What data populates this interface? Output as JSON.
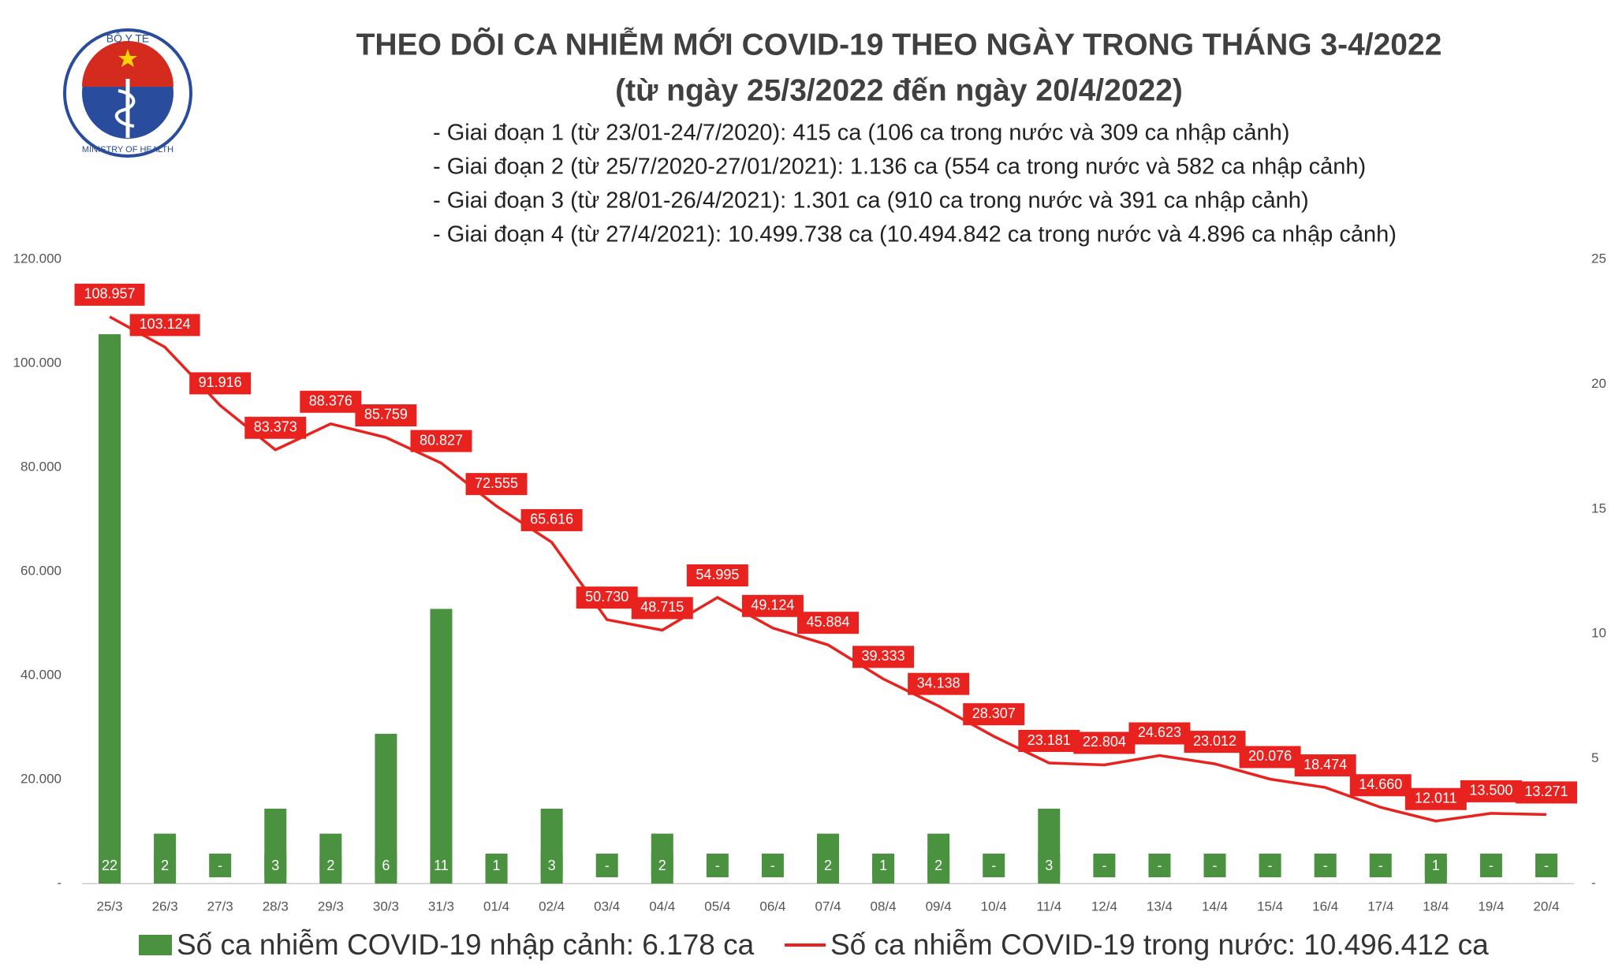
{
  "logo": {
    "top": "BỘ Y TẾ",
    "bottom": "MINISTRY OF HEALTH"
  },
  "chart_data": {
    "type": "bar-line",
    "title": "THEO DÕI CA NHIỄM MỚI COVID-19 THEO NGÀY TRONG THÁNG 3-4/2022",
    "subtitle": "(từ ngày 25/3/2022 đến ngày 20/4/2022)",
    "annotations": [
      "- Giai đoạn 1 (từ 23/01-24/7/2020): 415 ca (106 ca trong nước và 309 ca nhập cảnh)",
      "- Giai đoạn 2 (từ 25/7/2020-27/01/2021): 1.136 ca (554 ca trong nước và 582 ca nhập cảnh)",
      "- Giai đoạn 3 (từ 28/01-26/4/2021): 1.301 ca (910 ca trong nước và 391 ca nhập cảnh)",
      "- Giai đoạn 4 (từ 27/4/2021): 10.499.738 ca (10.494.842 ca trong nước và 4.896 ca nhập cảnh)"
    ],
    "categories": [
      "25/3",
      "26/3",
      "27/3",
      "28/3",
      "29/3",
      "30/3",
      "31/3",
      "01/4",
      "02/4",
      "03/4",
      "04/4",
      "05/4",
      "06/4",
      "07/4",
      "08/4",
      "09/4",
      "10/4",
      "11/4",
      "12/4",
      "13/4",
      "14/4",
      "15/4",
      "16/4",
      "17/4",
      "18/4",
      "19/4",
      "20/4"
    ],
    "series": [
      {
        "name": "Số ca nhiễm COVID-19 nhập cảnh: 6.178 ca",
        "type": "bar",
        "axis": "y2",
        "color": "#4a9140",
        "values": [
          22,
          2,
          0,
          3,
          2,
          6,
          11,
          1,
          3,
          0,
          2,
          0,
          0,
          2,
          1,
          2,
          0,
          3,
          0,
          0,
          0,
          0,
          0,
          0,
          1,
          0,
          0
        ],
        "value_labels": [
          "22",
          "2",
          "-",
          "3",
          "2",
          "6",
          "11",
          "1",
          "3",
          "-",
          "2",
          "-",
          "-",
          "2",
          "1",
          "2",
          "-",
          "3",
          "-",
          "-",
          "-",
          "-",
          "-",
          "-",
          "1",
          "-",
          "-"
        ]
      },
      {
        "name": "Số ca nhiễm COVID-19 trong nước: 10.496.412 ca",
        "type": "line",
        "color": "#e8231f",
        "values": [
          108957,
          103124,
          91916,
          83373,
          88376,
          85759,
          80827,
          72555,
          65616,
          50730,
          48715,
          54995,
          49124,
          45884,
          39333,
          34138,
          28307,
          23181,
          22804,
          24623,
          23012,
          20076,
          18474,
          14660,
          12011,
          13500,
          13271
        ],
        "value_labels": [
          "108.957",
          "103.124",
          "91.916",
          "83.373",
          "88.376",
          "85.759",
          "80.827",
          "72.555",
          "65.616",
          "50.730",
          "48.715",
          "54.995",
          "49.124",
          "45.884",
          "39.333",
          "34.138",
          "28.307",
          "23.181",
          "22.804",
          "24.623",
          "23.012",
          "20.076",
          "18.474",
          "14.660",
          "12.011",
          "13.500",
          "13.271"
        ]
      }
    ],
    "ylim": [
      0,
      120000
    ],
    "yticks": [
      {
        "value": 0,
        "label": "-"
      },
      {
        "value": 20000,
        "label": "20.000"
      },
      {
        "value": 40000,
        "label": "40.000"
      },
      {
        "value": 60000,
        "label": "60.000"
      },
      {
        "value": 80000,
        "label": "80.000"
      },
      {
        "value": 100000,
        "label": "100.000"
      },
      {
        "value": 120000,
        "label": "120.000"
      }
    ],
    "y2lim": [
      0,
      25
    ],
    "y2ticks": [
      {
        "value": 0,
        "label": "-"
      },
      5,
      10,
      15,
      20,
      25
    ],
    "grid": false
  }
}
